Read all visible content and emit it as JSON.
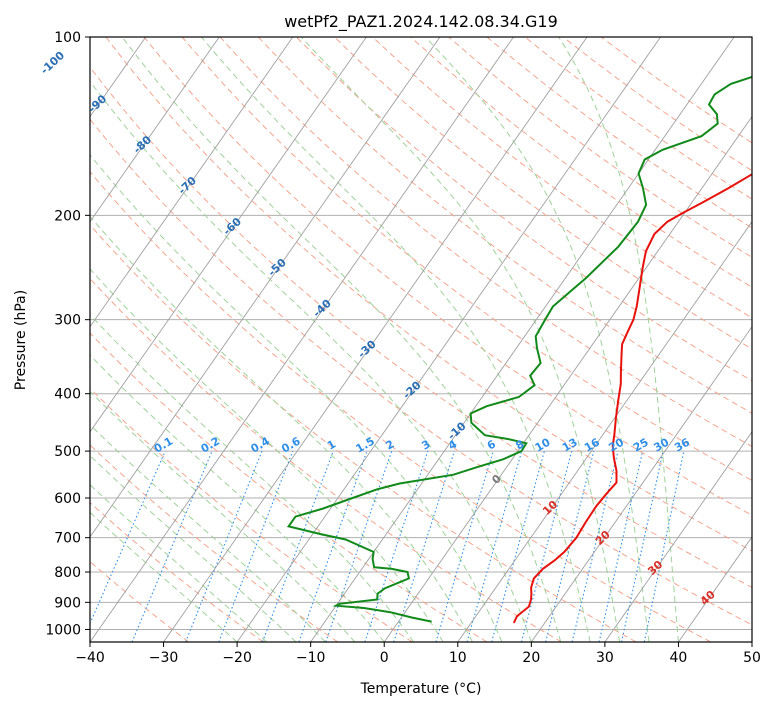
{
  "chart_data": {
    "type": "line",
    "subtype": "skew-t log-p diagram",
    "title": "wetPf2_PAZ1.2024.142.08.34.G19",
    "xlabel": "Temperature (°C)",
    "ylabel": "Pressure (hPa)",
    "xlim": [
      -40,
      50
    ],
    "ylim": [
      1050,
      100
    ],
    "y_scale": "log",
    "grid": true,
    "x_ticks": [
      -40,
      -30,
      -20,
      -10,
      0,
      10,
      20,
      30,
      40,
      50
    ],
    "y_ticks": [
      100,
      200,
      300,
      400,
      500,
      600,
      700,
      800,
      900,
      1000
    ],
    "isotherm_labels": [
      "-100",
      "-90",
      "-80",
      "-70",
      "-60",
      "-50",
      "-40",
      "-30",
      "-20",
      "-10",
      "0",
      "10",
      "20",
      "30",
      "40"
    ],
    "mixing_ratio_labels": [
      "0.1",
      "0.2",
      "0.4",
      "0.6",
      "1",
      "1.5",
      "2",
      "3",
      "4",
      "6",
      "8",
      "10",
      "13",
      "16",
      "20",
      "25",
      "30",
      "36"
    ],
    "colors": {
      "temperature": "#e8120c",
      "dewpoint": "#118a1a",
      "isotherm": "#a0a0a0",
      "isotherm_label": "#2a6fb5",
      "dry_adiabat": "#f4a58e",
      "moist_adiabat": "#9fd29a",
      "mixing_ratio": "#2f8fe8",
      "grid": "#b0b0b0",
      "warm_isotherm_label": "#d9302a",
      "zero_label": "#7a7a7a"
    },
    "series": [
      {
        "name": "",
        "color_key": "temperature",
        "points": [
          [
            15.8,
            975
          ],
          [
            15.6,
            950
          ],
          [
            16.3,
            915
          ],
          [
            15.9,
            890
          ],
          [
            15.4,
            870
          ],
          [
            14.8,
            850
          ],
          [
            14.3,
            820
          ],
          [
            14.6,
            790
          ],
          [
            15.4,
            765
          ],
          [
            15.9,
            740
          ],
          [
            16.2,
            700
          ],
          [
            16.0,
            660
          ],
          [
            15.9,
            620
          ],
          [
            16.1,
            590
          ],
          [
            16.4,
            565
          ],
          [
            15.3,
            540
          ],
          [
            13.8,
            515
          ],
          [
            12.4,
            490
          ],
          [
            11.6,
            470
          ],
          [
            10.2,
            440
          ],
          [
            8.8,
            410
          ],
          [
            7.6,
            385
          ],
          [
            6.5,
            368
          ],
          [
            5.0,
            345
          ],
          [
            4.0,
            330
          ],
          [
            3.6,
            315
          ],
          [
            3.2,
            300
          ],
          [
            2.4,
            285
          ],
          [
            1.0,
            265
          ],
          [
            -0.5,
            245
          ],
          [
            -1.6,
            230
          ],
          [
            -2.1,
            215
          ],
          [
            -1.5,
            205
          ],
          [
            -0.2,
            198
          ],
          [
            1.5,
            190
          ],
          [
            3.6,
            180
          ],
          [
            6.0,
            168
          ],
          [
            8.4,
            158
          ],
          [
            10.6,
            150
          ],
          [
            12.7,
            141
          ],
          [
            14.5,
            133
          ],
          [
            16.0,
            126
          ],
          [
            17.2,
            120
          ],
          [
            17.4,
            116
          ],
          [
            18.0,
            111
          ],
          [
            19.0,
            106
          ],
          [
            20.0,
            100
          ]
        ]
      },
      {
        "name": "",
        "color_key": "dewpoint",
        "points": [
          [
            4.5,
            970
          ],
          [
            1.5,
            955
          ],
          [
            -2.0,
            935
          ],
          [
            -6.0,
            920
          ],
          [
            -10.0,
            912
          ],
          [
            -9.7,
            905
          ],
          [
            -5.0,
            890
          ],
          [
            -5.5,
            870
          ],
          [
            -5.0,
            852
          ],
          [
            -2.7,
            820
          ],
          [
            -3.5,
            800
          ],
          [
            -6.0,
            790
          ],
          [
            -8.5,
            785
          ],
          [
            -9.5,
            760
          ],
          [
            -10.0,
            740
          ],
          [
            -15.0,
            705
          ],
          [
            -19.0,
            690
          ],
          [
            -24.0,
            670
          ],
          [
            -24.0,
            645
          ],
          [
            -21.0,
            625
          ],
          [
            -18.0,
            600
          ],
          [
            -15.5,
            580
          ],
          [
            -13.0,
            567
          ],
          [
            -6.5,
            548
          ],
          [
            -4.0,
            532
          ],
          [
            -1.2,
            516
          ],
          [
            0.5,
            500
          ],
          [
            0.4,
            485
          ],
          [
            -2.5,
            477
          ],
          [
            -6.0,
            470
          ],
          [
            -9.0,
            448
          ],
          [
            -10.0,
            432
          ],
          [
            -8.5,
            420
          ],
          [
            -5.0,
            405
          ],
          [
            -4.0,
            387
          ],
          [
            -5.5,
            373
          ],
          [
            -5.3,
            355
          ],
          [
            -7.2,
            335
          ],
          [
            -8.5,
            320
          ],
          [
            -8.8,
            300
          ],
          [
            -9.0,
            285
          ],
          [
            -8.0,
            268
          ],
          [
            -7.2,
            255
          ],
          [
            -6.5,
            240
          ],
          [
            -5.8,
            226
          ],
          [
            -5.5,
            205
          ],
          [
            -6.0,
            192
          ],
          [
            -8.0,
            180
          ],
          [
            -10.0,
            170
          ],
          [
            -10.5,
            161
          ],
          [
            -9.0,
            155
          ],
          [
            -5.0,
            147
          ],
          [
            -4.0,
            140
          ],
          [
            -5.0,
            135
          ],
          [
            -7.0,
            130
          ],
          [
            -7.2,
            125
          ],
          [
            -6.0,
            120
          ],
          [
            -2.5,
            115
          ],
          [
            0.3,
            108
          ],
          [
            0.2,
            100
          ]
        ]
      }
    ]
  }
}
